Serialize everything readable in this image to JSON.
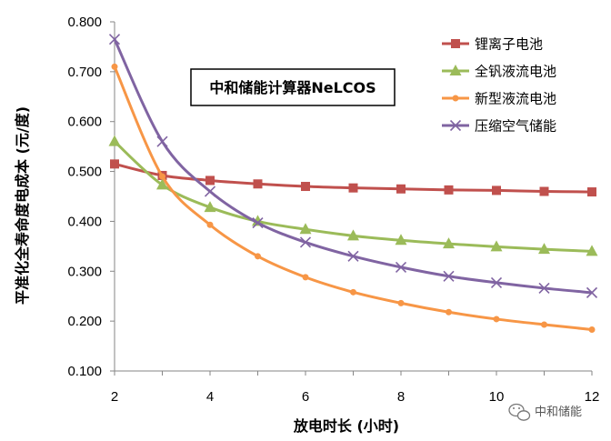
{
  "chart_data": {
    "type": "line",
    "xlabel": "放电时长 (小时)",
    "ylabel": "平准化全寿命度电成本 (元/度)",
    "x": [
      2,
      3,
      4,
      5,
      6,
      7,
      8,
      9,
      10,
      11,
      12
    ],
    "x_ticks": [
      2,
      4,
      6,
      8,
      10,
      12
    ],
    "y_ticks": [
      0.1,
      0.2,
      0.3,
      0.4,
      0.5,
      0.6,
      0.7,
      0.8
    ],
    "y_tick_labels": [
      "0.100",
      "0.200",
      "0.300",
      "0.400",
      "0.500",
      "0.600",
      "0.700",
      "0.800"
    ],
    "xlim": [
      2,
      12
    ],
    "ylim": [
      0.1,
      0.8
    ],
    "grid": false,
    "legend_position": "top-right",
    "series": [
      {
        "name": "锂离子电池",
        "color": "#c0504d",
        "marker": "square",
        "values": [
          0.515,
          0.492,
          0.482,
          0.475,
          0.47,
          0.467,
          0.465,
          0.463,
          0.462,
          0.46,
          0.459
        ]
      },
      {
        "name": "全钒液流电池",
        "color": "#9bbb59",
        "marker": "triangle",
        "values": [
          0.56,
          0.473,
          0.428,
          0.4,
          0.384,
          0.371,
          0.362,
          0.355,
          0.349,
          0.344,
          0.34
        ]
      },
      {
        "name": "新型液流电池",
        "color": "#f79646",
        "marker": "circle",
        "values": [
          0.71,
          0.49,
          0.393,
          0.33,
          0.288,
          0.258,
          0.236,
          0.218,
          0.204,
          0.193,
          0.183
        ]
      },
      {
        "name": "压缩空气储能",
        "color": "#8064a2",
        "marker": "x",
        "values": [
          0.765,
          0.56,
          0.46,
          0.397,
          0.358,
          0.33,
          0.308,
          0.29,
          0.277,
          0.266,
          0.257
        ]
      }
    ],
    "annotation": "中和储能计算器NeLCOS"
  },
  "watermark": {
    "text": "中和储能",
    "icon": "wechat-icon"
  }
}
